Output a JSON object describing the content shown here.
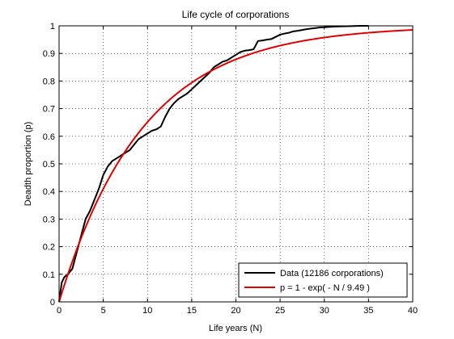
{
  "chart_data": {
    "type": "line",
    "title": "Life cycle of corporations",
    "xlabel": "Life years (N)",
    "ylabel": "Deadth proportion (p)",
    "xlim": [
      0,
      40
    ],
    "ylim": [
      0,
      1
    ],
    "xticks": [
      0,
      5,
      10,
      15,
      20,
      25,
      30,
      35,
      40
    ],
    "yticks": [
      0,
      0.1,
      0.2,
      0.3,
      0.4,
      0.5,
      0.6,
      0.7,
      0.8,
      0.9,
      1
    ],
    "xtick_labels": [
      "0",
      "5",
      "10",
      "15",
      "20",
      "25",
      "30",
      "35",
      "40"
    ],
    "ytick_labels": [
      "0",
      "0.1",
      "0.2",
      "0.3",
      "0.4",
      "0.5",
      "0.6",
      "0.7",
      "0.8",
      "0.9",
      "1"
    ],
    "grid": true,
    "legend_position": "bottom-right",
    "series": [
      {
        "name": "Data (12186 corporations)",
        "color": "#000000",
        "x": [
          0,
          0.3,
          0.6,
          1,
          1.5,
          2,
          2.5,
          3,
          3.5,
          4,
          4.5,
          5,
          5.5,
          6,
          6.5,
          7,
          7.5,
          8,
          8.5,
          9,
          9.5,
          10,
          10.5,
          11,
          11.5,
          12,
          12.5,
          13,
          13.5,
          14,
          14.5,
          15,
          15.5,
          16,
          16.5,
          17,
          17.5,
          18,
          18.5,
          19,
          19.5,
          20,
          20.5,
          21,
          21.5,
          22,
          22.5,
          23,
          23.5,
          24,
          24.5,
          25,
          25.5,
          26,
          26.5,
          27,
          27.5,
          28,
          28.5,
          29,
          29.5,
          30,
          31,
          32,
          33,
          34,
          35
        ],
        "y": [
          0,
          0.07,
          0.09,
          0.1,
          0.12,
          0.18,
          0.24,
          0.3,
          0.33,
          0.37,
          0.41,
          0.46,
          0.49,
          0.51,
          0.52,
          0.53,
          0.54,
          0.55,
          0.57,
          0.59,
          0.6,
          0.61,
          0.62,
          0.625,
          0.635,
          0.67,
          0.7,
          0.72,
          0.735,
          0.745,
          0.755,
          0.77,
          0.785,
          0.8,
          0.815,
          0.83,
          0.85,
          0.86,
          0.87,
          0.875,
          0.885,
          0.895,
          0.905,
          0.91,
          0.912,
          0.915,
          0.945,
          0.947,
          0.95,
          0.952,
          0.96,
          0.968,
          0.972,
          0.975,
          0.98,
          0.982,
          0.985,
          0.988,
          0.99,
          0.992,
          0.994,
          0.995,
          0.997,
          0.998,
          0.999,
          1,
          1
        ]
      },
      {
        "name": "p = 1 - exp( - N / 9.49 )",
        "color": "#e00000",
        "tau": 9.49
      }
    ]
  }
}
